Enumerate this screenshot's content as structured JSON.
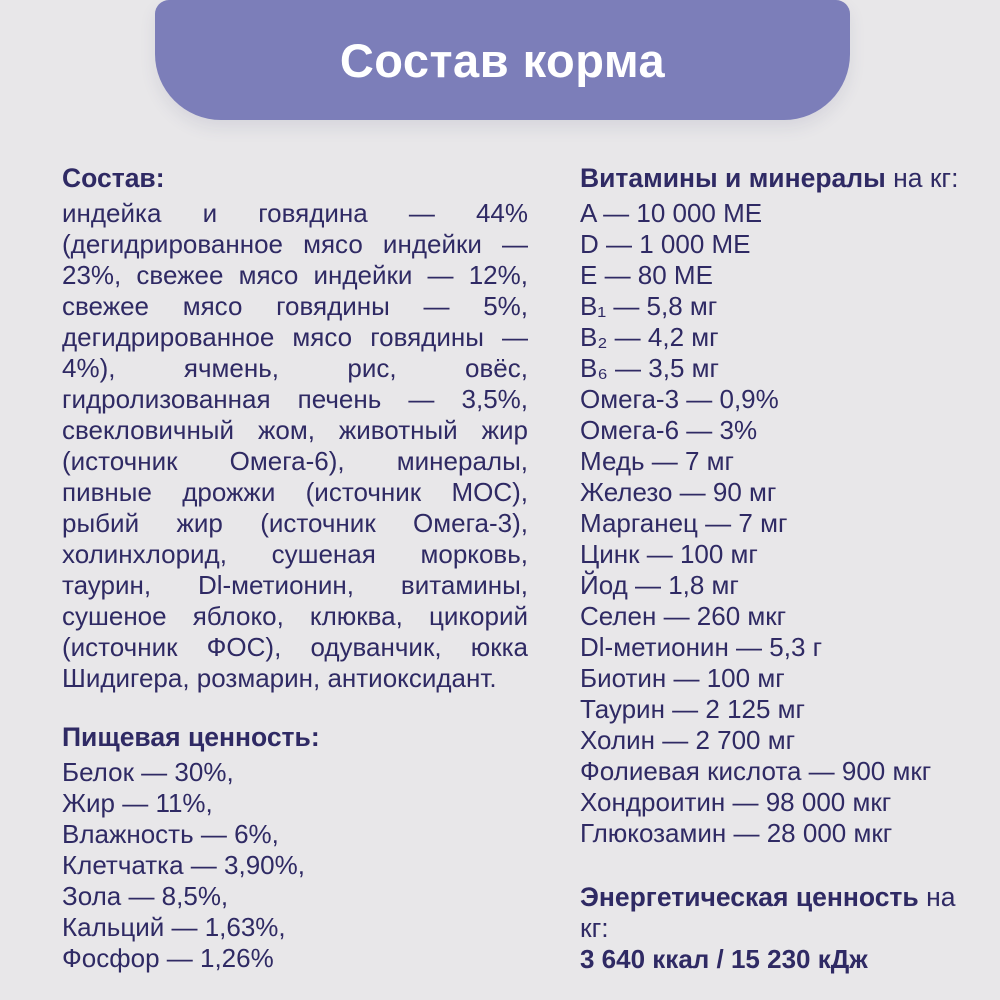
{
  "header": {
    "title": "Состав корма"
  },
  "colors": {
    "page_bg": "#e8e7e9",
    "banner_bg": "#7c7eb9",
    "banner_text": "#ffffff",
    "body_text": "#2f2a64"
  },
  "left_column": {
    "composition": {
      "heading": "Состав:",
      "body": "индейка и говядина — 44% (дегидрированное мясо индейки — 23%, свежее мясо индейки — 12%, свежее мясо говядины — 5%, дегидрированное мясо говядины — 4%), ячмень, рис, овёс, гидролизованная печень — 3,5%, свекловичный жом, животный жир (источник Омега-6), минералы, пивные дрожжи (источник МОС), рыбий жир (источник Омега-3), холинхлорид, сушеная морковь, таурин, Dl-метионин, витамины, сушеное яблоко, клюква, цикорий (источник ФОС), одуванчик, юкка Шидигера, розмарин, антиоксидант."
    },
    "nutrition": {
      "heading": "Пищевая ценность:",
      "items": [
        "Белок — 30%,",
        "Жир — 11%,",
        "Влажность — 6%,",
        "Клетчатка — 3,90%,",
        "Зола — 8,5%,",
        "Кальций — 1,63%,",
        "Фосфор — 1,26%"
      ]
    }
  },
  "right_column": {
    "vitamins": {
      "heading_bold": "Витамины и минералы",
      "heading_regular": " на кг:",
      "items": [
        "A — 10 000 МЕ",
        "D — 1 000 МЕ",
        "E — 80 МЕ",
        "B₁ — 5,8 мг",
        "B₂ — 4,2 мг",
        "B₆ — 3,5 мг",
        "Омега-3 — 0,9%",
        "Омега-6 — 3%",
        "Медь — 7 мг",
        "Железо — 90 мг",
        "Марганец — 7 мг",
        "Цинк — 100 мг",
        "Йод — 1,8 мг",
        "Селен — 260 мкг",
        "Dl-метионин — 5,3 г",
        "Биотин — 100 мг",
        "Таурин — 2 125 мг",
        "Холин — 2 700 мг",
        "Фолиевая кислота — 900 мкг",
        "Хондроитин — 98 000 мкг",
        "Глюкозамин — 28 000 мкг"
      ]
    },
    "energy": {
      "heading_bold": "Энергетическая ценность",
      "heading_regular": " на кг:",
      "value": "3 640 ккал / 15 230 кДж"
    }
  }
}
